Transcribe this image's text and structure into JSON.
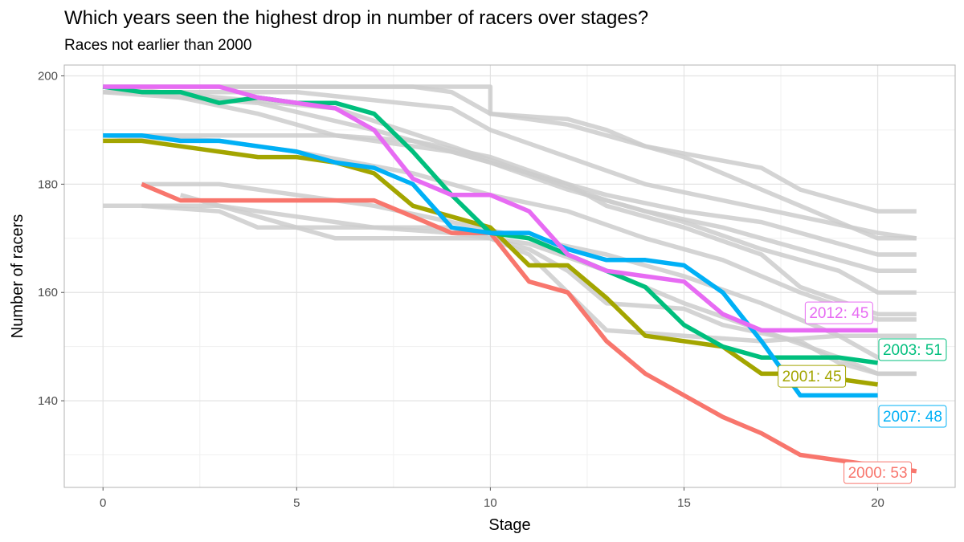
{
  "title": "Which years seen the highest drop in number of racers over stages?",
  "subtitle": "Races not earlier than 2000",
  "chart_data": {
    "type": "line",
    "xlabel": "Stage",
    "ylabel": "Number of racers",
    "xlim": [
      -1,
      22
    ],
    "ylim": [
      124,
      202
    ],
    "x_ticks": [
      0,
      5,
      10,
      15,
      20
    ],
    "y_ticks": [
      140,
      160,
      180,
      200
    ],
    "grid": true,
    "background_series_color": "#cccccc",
    "background_series": [
      [
        [
          0,
          198
        ],
        [
          5,
          198
        ],
        [
          10,
          198
        ],
        [
          10,
          193
        ],
        [
          12,
          192
        ],
        [
          13,
          190
        ],
        [
          14,
          187
        ],
        [
          17,
          183
        ],
        [
          18,
          179
        ],
        [
          19,
          177
        ],
        [
          20,
          175
        ],
        [
          21,
          175
        ]
      ],
      [
        [
          0,
          198
        ],
        [
          4,
          198
        ],
        [
          8,
          198
        ],
        [
          9,
          197
        ],
        [
          10,
          193
        ],
        [
          12,
          191
        ],
        [
          15,
          185
        ],
        [
          16,
          182
        ],
        [
          18,
          176
        ],
        [
          19,
          173
        ],
        [
          20,
          170
        ],
        [
          21,
          170
        ]
      ],
      [
        [
          0,
          197
        ],
        [
          5,
          197
        ],
        [
          9,
          194
        ],
        [
          10,
          190
        ],
        [
          12,
          185
        ],
        [
          14,
          180
        ],
        [
          16,
          177
        ],
        [
          18,
          174
        ],
        [
          20,
          171
        ],
        [
          21,
          170
        ]
      ],
      [
        [
          0,
          198
        ],
        [
          3,
          196
        ],
        [
          6,
          194
        ],
        [
          9,
          187
        ],
        [
          11,
          182
        ],
        [
          13,
          178
        ],
        [
          15,
          175
        ],
        [
          17,
          173
        ],
        [
          19,
          169
        ],
        [
          20,
          167
        ],
        [
          21,
          167
        ]
      ],
      [
        [
          0,
          197
        ],
        [
          4,
          195
        ],
        [
          7,
          190
        ],
        [
          10,
          184
        ],
        [
          12,
          179
        ],
        [
          14,
          175
        ],
        [
          16,
          172
        ],
        [
          18,
          168
        ],
        [
          20,
          164
        ],
        [
          21,
          164
        ]
      ],
      [
        [
          0,
          198
        ],
        [
          2,
          196
        ],
        [
          4,
          193
        ],
        [
          6,
          189
        ],
        [
          9,
          186
        ],
        [
          11,
          182
        ],
        [
          13,
          177
        ],
        [
          15,
          173
        ],
        [
          17,
          168
        ],
        [
          19,
          164
        ],
        [
          20,
          160
        ],
        [
          21,
          160
        ]
      ],
      [
        [
          0,
          189
        ],
        [
          6,
          189
        ],
        [
          8,
          188
        ],
        [
          10,
          185
        ],
        [
          12,
          180
        ],
        [
          13,
          176
        ],
        [
          15,
          172
        ],
        [
          17,
          167
        ],
        [
          18,
          161
        ],
        [
          20,
          156
        ],
        [
          21,
          156
        ]
      ],
      [
        [
          0,
          189
        ],
        [
          3,
          188
        ],
        [
          5,
          186
        ],
        [
          8,
          182
        ],
        [
          10,
          178
        ],
        [
          12,
          175
        ],
        [
          14,
          170
        ],
        [
          16,
          166
        ],
        [
          18,
          160
        ],
        [
          20,
          155
        ],
        [
          21,
          155
        ]
      ],
      [
        [
          1,
          180
        ],
        [
          3,
          180
        ],
        [
          5,
          178
        ],
        [
          7,
          176
        ],
        [
          9,
          173
        ],
        [
          11,
          170
        ],
        [
          13,
          167
        ],
        [
          15,
          163
        ],
        [
          17,
          158
        ],
        [
          19,
          152
        ],
        [
          20,
          148
        ],
        [
          21,
          148
        ]
      ],
      [
        [
          0,
          176
        ],
        [
          3,
          176
        ],
        [
          5,
          174
        ],
        [
          7,
          172
        ],
        [
          9,
          171
        ],
        [
          11,
          169
        ],
        [
          13,
          164
        ],
        [
          15,
          158
        ],
        [
          17,
          153
        ],
        [
          19,
          148
        ],
        [
          20,
          145
        ],
        [
          21,
          145
        ]
      ],
      [
        [
          1,
          176
        ],
        [
          3,
          175
        ],
        [
          4,
          172
        ],
        [
          6,
          172
        ],
        [
          9,
          172
        ],
        [
          11,
          168
        ],
        [
          12,
          164
        ],
        [
          13,
          158
        ],
        [
          15,
          157
        ],
        [
          16,
          154
        ],
        [
          18,
          151
        ],
        [
          19,
          147
        ],
        [
          20,
          145
        ],
        [
          21,
          145
        ]
      ],
      [
        [
          2,
          178
        ],
        [
          4,
          174
        ],
        [
          6,
          170
        ],
        [
          8,
          170
        ],
        [
          10,
          170
        ],
        [
          11,
          167
        ],
        [
          13,
          153
        ],
        [
          15,
          152
        ],
        [
          17,
          151
        ],
        [
          19,
          152
        ],
        [
          20,
          152
        ],
        [
          21,
          152
        ]
      ]
    ],
    "series": [
      {
        "name": "2000",
        "label": "2000: 53",
        "color": "#f8766d",
        "points": [
          [
            1,
            180
          ],
          [
            2,
            177
          ],
          [
            7,
            177
          ],
          [
            8,
            174
          ],
          [
            9,
            171
          ],
          [
            10,
            171
          ],
          [
            11,
            162
          ],
          [
            12,
            160
          ],
          [
            13,
            151
          ],
          [
            14,
            145
          ],
          [
            15,
            141
          ],
          [
            16,
            137
          ],
          [
            17,
            134
          ],
          [
            18,
            130
          ],
          [
            19,
            129
          ],
          [
            20,
            128
          ],
          [
            21,
            127
          ]
        ]
      },
      {
        "name": "2001",
        "label": "2001: 45",
        "color": "#a3a500",
        "points": [
          [
            0,
            188
          ],
          [
            1,
            188
          ],
          [
            3,
            186
          ],
          [
            4,
            185
          ],
          [
            5,
            185
          ],
          [
            6,
            184
          ],
          [
            7,
            182
          ],
          [
            8,
            176
          ],
          [
            9,
            174
          ],
          [
            10,
            172
          ],
          [
            11,
            165
          ],
          [
            12,
            165
          ],
          [
            13,
            159
          ],
          [
            14,
            152
          ],
          [
            15,
            151
          ],
          [
            16,
            150
          ],
          [
            17,
            145
          ],
          [
            18,
            145
          ],
          [
            19,
            144
          ],
          [
            20,
            143
          ]
        ]
      },
      {
        "name": "2003",
        "label": "2003: 51",
        "color": "#00bf7d",
        "points": [
          [
            0,
            198
          ],
          [
            1,
            197
          ],
          [
            2,
            197
          ],
          [
            3,
            195
          ],
          [
            4,
            196
          ],
          [
            5,
            195
          ],
          [
            6,
            195
          ],
          [
            7,
            193
          ],
          [
            8,
            186
          ],
          [
            9,
            178
          ],
          [
            10,
            171
          ],
          [
            11,
            170
          ],
          [
            12,
            167
          ],
          [
            13,
            164
          ],
          [
            14,
            161
          ],
          [
            15,
            154
          ],
          [
            16,
            150
          ],
          [
            17,
            148
          ],
          [
            18,
            148
          ],
          [
            19,
            148
          ],
          [
            20,
            147
          ]
        ]
      },
      {
        "name": "2007",
        "label": "2007: 48",
        "color": "#00b0f6",
        "points": [
          [
            0,
            189
          ],
          [
            1,
            189
          ],
          [
            2,
            188
          ],
          [
            3,
            188
          ],
          [
            4,
            187
          ],
          [
            5,
            186
          ],
          [
            6,
            184
          ],
          [
            7,
            183
          ],
          [
            8,
            180
          ],
          [
            9,
            172
          ],
          [
            10,
            171
          ],
          [
            11,
            171
          ],
          [
            12,
            168
          ],
          [
            13,
            166
          ],
          [
            14,
            166
          ],
          [
            15,
            165
          ],
          [
            16,
            160
          ],
          [
            17,
            151
          ],
          [
            18,
            141
          ],
          [
            19,
            141
          ],
          [
            20,
            141
          ]
        ]
      },
      {
        "name": "2012",
        "label": "2012: 45",
        "color": "#e76bf3",
        "points": [
          [
            0,
            198
          ],
          [
            1,
            198
          ],
          [
            2,
            198
          ],
          [
            3,
            198
          ],
          [
            4,
            196
          ],
          [
            5,
            195
          ],
          [
            6,
            194
          ],
          [
            7,
            190
          ],
          [
            8,
            181
          ],
          [
            9,
            178
          ],
          [
            10,
            178
          ],
          [
            11,
            175
          ],
          [
            12,
            167
          ],
          [
            13,
            164
          ],
          [
            14,
            163
          ],
          [
            15,
            162
          ],
          [
            16,
            156
          ],
          [
            17,
            153
          ],
          [
            18,
            153
          ],
          [
            19,
            153
          ],
          [
            20,
            153
          ]
        ]
      }
    ],
    "labels": [
      {
        "series": "2012",
        "text": "2012: 45",
        "x": 19,
        "y": 156.3
      },
      {
        "series": "2003",
        "text": "2003: 51",
        "x": 20.9,
        "y": 149.5
      },
      {
        "series": "2001",
        "text": "2001: 45",
        "x": 18.3,
        "y": 144.6
      },
      {
        "series": "2007",
        "text": "2007: 48",
        "x": 20.9,
        "y": 137.2
      },
      {
        "series": "2000",
        "text": "2000: 53",
        "x": 20.0,
        "y": 126.8
      }
    ]
  }
}
